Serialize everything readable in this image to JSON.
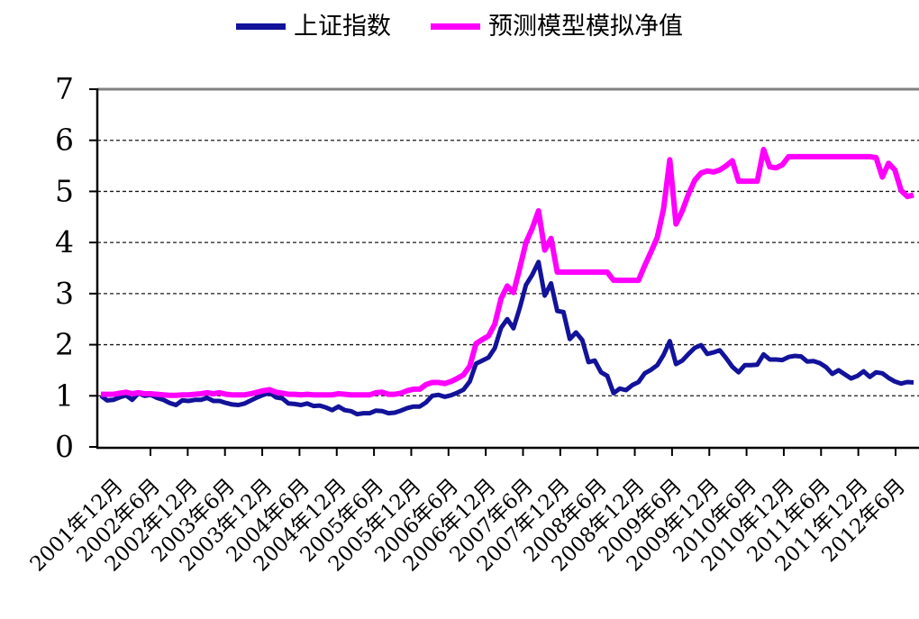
{
  "legend": {
    "items": [
      {
        "label": "上证指数",
        "color": "#12129A"
      },
      {
        "label": "预测模型模拟净值",
        "color": "#FF00FF"
      }
    ]
  },
  "axes": {
    "y_tick_labels": [
      "0",
      "1",
      "2",
      "3",
      "4",
      "5",
      "6",
      "7"
    ],
    "x_tick_labels": [
      "2001年12月",
      "2002年6月",
      "2002年12月",
      "2003年6月",
      "2003年12月",
      "2004年6月",
      "2004年12月",
      "2005年6月",
      "2005年12月",
      "2006年6月",
      "2006年12月",
      "2007年6月",
      "2007年12月",
      "2008年6月",
      "2008年12月",
      "2009年6月",
      "2009年12月",
      "2010年6月",
      "2010年12月",
      "2011年6月",
      "2011年12月",
      "2012年6月"
    ]
  },
  "chart_data": {
    "type": "line",
    "title": "",
    "xlabel": "",
    "ylabel": "",
    "ylim": [
      0,
      7
    ],
    "yticks": [
      0,
      1,
      2,
      3,
      4,
      5,
      6,
      7
    ],
    "grid": "horizontal-dashed-at-1-to-6",
    "legend_position": "top-center",
    "x_interval": "monthly",
    "x_start": "2001年12月",
    "x_end": "2012年10月",
    "categories_labeled": [
      "2001年12月",
      "2002年6月",
      "2002年12月",
      "2003年6月",
      "2003年12月",
      "2004年6月",
      "2004年12月",
      "2005年6月",
      "2005年12月",
      "2006年6月",
      "2006年12月",
      "2007年6月",
      "2007年12月",
      "2008年6月",
      "2008年12月",
      "2009年6月",
      "2009年12月",
      "2010年6月",
      "2010年12月",
      "2011年6月",
      "2011年12月",
      "2012年6月"
    ],
    "series": [
      {
        "name": "上证指数",
        "color": "#12129A",
        "values": [
          1.0,
          0.91,
          0.92,
          0.97,
          1.01,
          0.92,
          1.05,
          1.0,
          1.02,
          0.96,
          0.92,
          0.86,
          0.82,
          0.91,
          0.9,
          0.92,
          0.92,
          0.96,
          0.9,
          0.9,
          0.86,
          0.83,
          0.82,
          0.85,
          0.91,
          0.97,
          1.02,
          1.06,
          0.97,
          0.95,
          0.85,
          0.84,
          0.82,
          0.85,
          0.8,
          0.81,
          0.77,
          0.72,
          0.79,
          0.72,
          0.7,
          0.64,
          0.66,
          0.66,
          0.71,
          0.7,
          0.66,
          0.67,
          0.71,
          0.76,
          0.79,
          0.79,
          0.87,
          1.0,
          1.02,
          0.98,
          1.01,
          1.06,
          1.12,
          1.28,
          1.63,
          1.69,
          1.75,
          1.93,
          2.33,
          2.5,
          2.32,
          2.72,
          3.17,
          3.37,
          3.62,
          2.96,
          3.2,
          2.66,
          2.64,
          2.11,
          2.24,
          2.09,
          1.66,
          1.69,
          1.46,
          1.39,
          1.05,
          1.14,
          1.11,
          1.21,
          1.27,
          1.44,
          1.51,
          1.6,
          1.8,
          2.07,
          1.62,
          1.69,
          1.82,
          1.94,
          1.99,
          1.82,
          1.85,
          1.89,
          1.74,
          1.57,
          1.46,
          1.6,
          1.6,
          1.61,
          1.81,
          1.71,
          1.71,
          1.7,
          1.76,
          1.78,
          1.77,
          1.67,
          1.68,
          1.64,
          1.56,
          1.43,
          1.5,
          1.42,
          1.34,
          1.39,
          1.48,
          1.37,
          1.46,
          1.44,
          1.35,
          1.28,
          1.24,
          1.27,
          1.26
        ]
      },
      {
        "name": "预测模型模拟净值",
        "color": "#FF00FF",
        "values": [
          1.03,
          1.03,
          1.03,
          1.05,
          1.07,
          1.04,
          1.06,
          1.04,
          1.04,
          1.03,
          1.02,
          1.01,
          1.01,
          1.02,
          1.02,
          1.03,
          1.04,
          1.06,
          1.04,
          1.06,
          1.03,
          1.02,
          1.02,
          1.02,
          1.04,
          1.07,
          1.1,
          1.12,
          1.07,
          1.05,
          1.03,
          1.03,
          1.02,
          1.03,
          1.02,
          1.02,
          1.02,
          1.02,
          1.04,
          1.03,
          1.02,
          1.02,
          1.02,
          1.02,
          1.06,
          1.07,
          1.03,
          1.03,
          1.05,
          1.1,
          1.13,
          1.13,
          1.22,
          1.26,
          1.26,
          1.24,
          1.28,
          1.34,
          1.41,
          1.58,
          2.02,
          2.1,
          2.17,
          2.4,
          2.9,
          3.15,
          3.02,
          3.5,
          4.0,
          4.28,
          4.62,
          3.85,
          4.08,
          3.42,
          3.42,
          3.42,
          3.42,
          3.42,
          3.42,
          3.42,
          3.42,
          3.42,
          3.26,
          3.26,
          3.26,
          3.26,
          3.26,
          3.55,
          3.82,
          4.1,
          4.66,
          5.62,
          4.36,
          4.62,
          4.95,
          5.22,
          5.36,
          5.4,
          5.38,
          5.42,
          5.5,
          5.6,
          5.2,
          5.2,
          5.2,
          5.2,
          5.82,
          5.48,
          5.46,
          5.52,
          5.68,
          5.68,
          5.68,
          5.68,
          5.68,
          5.68,
          5.68,
          5.68,
          5.68,
          5.68,
          5.68,
          5.68,
          5.68,
          5.68,
          5.66,
          5.28,
          5.55,
          5.42,
          5.02,
          4.9,
          4.93
        ]
      }
    ]
  }
}
